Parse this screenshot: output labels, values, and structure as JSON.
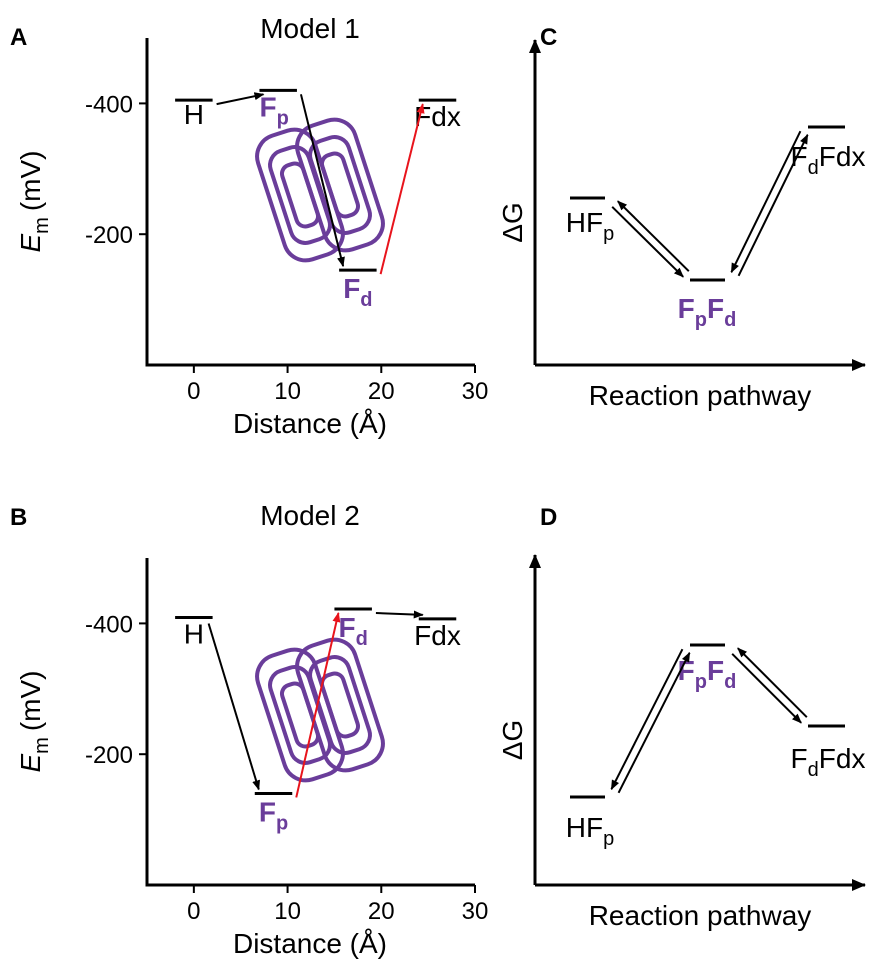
{
  "panels": [
    {
      "letter": "A",
      "title": "Model 1",
      "ylabel": {
        "symbol": "E",
        "sub": "m",
        "unit": "(mV)"
      },
      "xlabel": "Distance (Å)",
      "xlim": [
        -5,
        30
      ],
      "ylim": [
        0,
        -500
      ],
      "xticks": [
        0,
        10,
        20,
        30
      ],
      "yticks": [
        -400,
        -200
      ],
      "levels": [
        {
          "label": [
            "H"
          ],
          "x": [
            -2,
            2
          ],
          "energy": -405,
          "color": "#000000"
        },
        {
          "label": [
            "F",
            "p"
          ],
          "x": [
            7,
            11
          ],
          "energy": -420,
          "color": "#6a3d9a"
        },
        {
          "label": [
            "F",
            "d"
          ],
          "x": [
            15.5,
            19.5
          ],
          "energy": -145,
          "color": "#6a3d9a"
        },
        {
          "label": [
            "Fdx"
          ],
          "x": [
            24,
            28
          ],
          "energy": -405,
          "color": "#000000"
        }
      ]
    },
    {
      "letter": "B",
      "title": "Model 2",
      "ylabel": {
        "symbol": "E",
        "sub": "m",
        "unit": "(mV)"
      },
      "xlabel": "Distance (Å)",
      "xlim": [
        -5,
        30
      ],
      "ylim": [
        0,
        -500
      ],
      "xticks": [
        0,
        10,
        20,
        30
      ],
      "yticks": [
        -400,
        -200
      ],
      "levels": [
        {
          "label": [
            "H"
          ],
          "x": [
            -2,
            2
          ],
          "energy": -409,
          "color": "#000000"
        },
        {
          "label": [
            "F",
            "p"
          ],
          "x": [
            6.5,
            10.5
          ],
          "energy": -140,
          "color": "#6a3d9a"
        },
        {
          "label": [
            "F",
            "d"
          ],
          "x": [
            15,
            19
          ],
          "energy": -422,
          "color": "#6a3d9a"
        },
        {
          "label": [
            "Fdx"
          ],
          "x": [
            24,
            28
          ],
          "energy": -407,
          "color": "#000000"
        }
      ]
    }
  ],
  "diagrams": [
    {
      "letter": "C",
      "ylabel": "ΔG",
      "xlabel": "Reaction pathway",
      "states": [
        {
          "label": [
            "HF",
            "p"
          ],
          "color": "#000000"
        },
        {
          "label": [
            "F",
            "p",
            "F",
            "d"
          ],
          "color": "#6a3d9a"
        },
        {
          "label": [
            "F",
            "d",
            "Fdx"
          ],
          "color": "#000000"
        }
      ]
    },
    {
      "letter": "D",
      "ylabel": "ΔG",
      "xlabel": "Reaction pathway",
      "states": [
        {
          "label": [
            "HF",
            "p"
          ],
          "color": "#000000"
        },
        {
          "label": [
            "F",
            "p",
            "F",
            "d"
          ],
          "color": "#6a3d9a"
        },
        {
          "label": [
            "F",
            "d",
            "Fdx"
          ],
          "color": "#000000"
        }
      ]
    }
  ]
}
